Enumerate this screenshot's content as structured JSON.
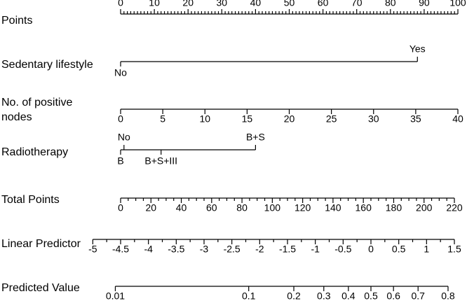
{
  "chart_data": {
    "type": "nomogram",
    "rows": [
      {
        "label_lines": [
          "Points"
        ],
        "kind": "axis",
        "scale": "points",
        "xlim": [
          0,
          100
        ],
        "ticks": [
          0,
          10,
          20,
          30,
          40,
          50,
          60,
          70,
          80,
          90,
          100
        ],
        "minor_divisions": 10,
        "label_side": "above"
      },
      {
        "label_lines": [
          "Sedentary lifestyle"
        ],
        "kind": "levels",
        "levels": [
          {
            "label": "No",
            "points": 0,
            "side": "below"
          },
          {
            "label": "Yes",
            "points": 88,
            "side": "above"
          }
        ]
      },
      {
        "label_lines": [
          "No. of positive",
          "nodes"
        ],
        "kind": "axis",
        "scale": "points",
        "xlim": [
          0,
          40
        ],
        "points": [
          0,
          100
        ],
        "ticks": [
          0,
          5,
          10,
          15,
          20,
          25,
          30,
          35,
          40
        ],
        "minor_divisions": 1,
        "label_side": "below"
      },
      {
        "label_lines": [
          "Radiotherapy"
        ],
        "kind": "levels",
        "levels": [
          {
            "label": "No",
            "points": 1,
            "side": "above"
          },
          {
            "label": "B+S",
            "points": 40,
            "side": "above"
          },
          {
            "label": "B",
            "points": 0,
            "side": "below"
          },
          {
            "label": "B+S+III",
            "points": 12,
            "side": "below"
          }
        ]
      },
      {
        "label_lines": [
          "Total Points"
        ],
        "kind": "axis",
        "scale": "total",
        "xlim": [
          0,
          220
        ],
        "ticks": [
          0,
          20,
          40,
          60,
          80,
          100,
          120,
          140,
          160,
          180,
          200,
          220
        ],
        "minor_divisions": 4,
        "label_side": "below"
      },
      {
        "label_lines": [
          "Linear Predictor"
        ],
        "kind": "axis",
        "scale": "linear",
        "xlim": [
          -5,
          1.5
        ],
        "total_points_map": {
          "total_points": [
            0,
            220
          ],
          "linear_predictor": [
            -4.5,
            1.5
          ]
        },
        "ticks": [
          -5,
          -4.5,
          -4,
          -3.5,
          -3,
          -2.5,
          -2,
          -1.5,
          -1,
          -0.5,
          0,
          0.5,
          1,
          1.5
        ],
        "minor_divisions": 2,
        "label_side": "below"
      },
      {
        "label_lines": [
          "Predicted Value"
        ],
        "kind": "axis",
        "scale": "logit",
        "xlim": [
          0.01,
          0.8
        ],
        "ticks": [
          0.01,
          0.1,
          0.2,
          0.3,
          0.4,
          0.5,
          0.6,
          0.7,
          0.8
        ],
        "minor_divisions": 1,
        "label_side": "below"
      }
    ]
  }
}
